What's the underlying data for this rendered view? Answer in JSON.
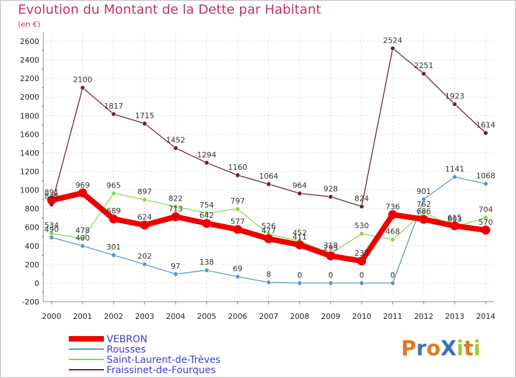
{
  "title": "Evolution du Montant de la Dette par Habitant",
  "subtitle": "(en €)",
  "logo": {
    "text": "ProXiti",
    "letters": [
      "P",
      "r",
      "o",
      "X",
      "i",
      "t",
      "i"
    ],
    "colors": [
      "#e07b1a",
      "#3a6fc4",
      "#e07b1a",
      "#3a6fc4",
      "#a5c93a",
      "#e07b1a",
      "#a5c93a"
    ]
  },
  "chart_data": {
    "type": "line",
    "title": "Evolution du Montant de la Dette par Habitant",
    "subtitle": "(en €)",
    "xlabel": "",
    "ylabel": "",
    "x": [
      "2000",
      "2001",
      "2002",
      "2003",
      "2004",
      "2005",
      "2006",
      "2007",
      "2008",
      "2009",
      "2010",
      "2011",
      "2012",
      "2013",
      "2014"
    ],
    "ylim": [
      -200,
      2600
    ],
    "yticks": [
      -200,
      0,
      200,
      400,
      600,
      800,
      1000,
      1200,
      1400,
      1600,
      1800,
      2000,
      2200,
      2400,
      2600
    ],
    "grid": true,
    "legend": "bottom-left",
    "series": [
      {
        "name": "VEBRON",
        "color": "#ee0000",
        "values": [
          891,
          969,
          689,
          624,
          713,
          642,
          577,
          477,
          411,
          293,
          237,
          736,
          686,
          615,
          570
        ]
      },
      {
        "name": "Rousses",
        "color": "#5a96cf",
        "values": [
          490,
          400,
          301,
          202,
          97,
          138,
          69,
          8,
          0,
          0,
          0,
          0,
          901,
          1141,
          1068
        ]
      },
      {
        "name": "Saint-Laurent-de-Trèves",
        "color": "#88d84a",
        "values": [
          534,
          478,
          965,
          897,
          822,
          754,
          797,
          526,
          452,
          318,
          530,
          468,
          762,
          603,
          704
        ]
      },
      {
        "name": "Fraissinet-de-Fourques",
        "color": "#6e2228",
        "values": [
          845,
          2100,
          1817,
          1715,
          1452,
          1294,
          1160,
          1064,
          964,
          928,
          824,
          2524,
          2251,
          1923,
          1614
        ]
      }
    ]
  }
}
